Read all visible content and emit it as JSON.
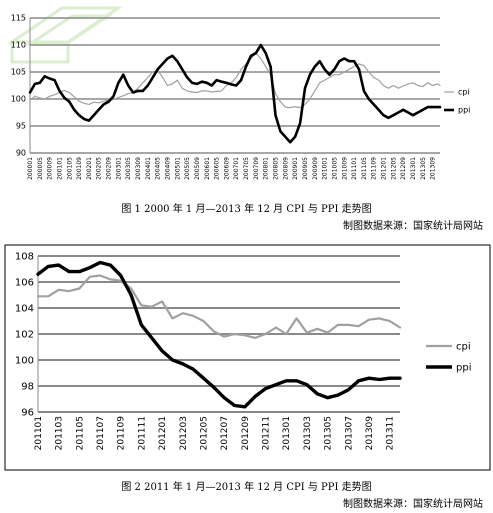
{
  "charts": [
    {
      "type": "line",
      "caption": "图 1  2000 年 1 月—2013 年 12 月 CPI 与 PPI 走势图",
      "source": "制图数据来源：国家统计局网站",
      "ylim": [
        90,
        115
      ],
      "yticks": [
        "90",
        "95",
        "100",
        "105",
        "110",
        "115"
      ],
      "xticks": [
        "200001",
        "200005",
        "200009",
        "200101",
        "200105",
        "200109",
        "200201",
        "200205",
        "200209",
        "200301",
        "200305",
        "200309",
        "200401",
        "200405",
        "200409",
        "200501",
        "200505",
        "200509",
        "200601",
        "200605",
        "200609",
        "200701",
        "200705",
        "200709",
        "200801",
        "200805",
        "200809",
        "200901",
        "200905",
        "200909",
        "201001",
        "201005",
        "201009",
        "201101",
        "201105",
        "201109",
        "201201",
        "201205",
        "201209",
        "201301",
        "201305",
        "201309"
      ],
      "legend": [
        "cpi",
        "ppi"
      ],
      "series_colors": [
        "#a0a0a0",
        "#000000"
      ],
      "series": [
        {
          "name": "cpi",
          "x": [
            0,
            2,
            4,
            6,
            8,
            10,
            12,
            14,
            16,
            18,
            20,
            22,
            24,
            26,
            28,
            30,
            32,
            34,
            36,
            38,
            40,
            42,
            44,
            46,
            48,
            50,
            52,
            54,
            56,
            58,
            60,
            62,
            64,
            66,
            68,
            70,
            72,
            74,
            76,
            78,
            80,
            82,
            84,
            86,
            88,
            90,
            92,
            94,
            96,
            98,
            100,
            102,
            104,
            106,
            108,
            110,
            112,
            114,
            116,
            118,
            120,
            122,
            124,
            126,
            128,
            130,
            132,
            134,
            136,
            138,
            140,
            142,
            144,
            146,
            148,
            150,
            152,
            154,
            156,
            158,
            160,
            162,
            164,
            166,
            167
          ],
          "y": [
            99.8,
            100.5,
            100.2,
            100.0,
            100.5,
            100.8,
            101.2,
            101.6,
            101.2,
            100.4,
            99.6,
            99.2,
            99.0,
            99.4,
            99.3,
            99.6,
            99.8,
            99.9,
            100.3,
            100.6,
            101.0,
            101.2,
            102.0,
            103.0,
            104.0,
            105.0,
            105.3,
            104.0,
            102.5,
            102.8,
            103.5,
            102.0,
            101.5,
            101.3,
            101.2,
            101.5,
            101.5,
            101.3,
            101.4,
            101.5,
            102.5,
            103.0,
            104.0,
            105.5,
            106.5,
            107.5,
            108.5,
            107.5,
            106.0,
            104.5,
            101.0,
            99.5,
            98.5,
            98.4,
            98.6,
            98.4,
            99.0,
            100.0,
            101.5,
            103.0,
            103.5,
            104.0,
            104.5,
            104.5,
            105.0,
            105.5,
            106.0,
            106.5,
            106.2,
            105.0,
            104.0,
            103.5,
            102.5,
            102.0,
            102.5,
            102.0,
            102.4,
            102.8,
            103.0,
            102.5,
            102.3,
            103.0,
            102.5,
            102.8,
            102.5
          ]
        },
        {
          "name": "ppi",
          "x": [
            0,
            2,
            4,
            6,
            8,
            10,
            12,
            14,
            16,
            18,
            20,
            22,
            24,
            26,
            28,
            30,
            32,
            34,
            36,
            38,
            40,
            42,
            44,
            46,
            48,
            50,
            52,
            54,
            56,
            58,
            60,
            62,
            64,
            66,
            68,
            70,
            72,
            74,
            76,
            78,
            80,
            82,
            84,
            86,
            88,
            90,
            92,
            94,
            96,
            98,
            100,
            102,
            104,
            106,
            108,
            110,
            112,
            114,
            116,
            118,
            120,
            122,
            124,
            126,
            128,
            130,
            132,
            134,
            136,
            138,
            140,
            142,
            144,
            146,
            148,
            150,
            152,
            154,
            156,
            158,
            160,
            162,
            164,
            166,
            167
          ],
          "y": [
            101.2,
            102.8,
            103.0,
            104.2,
            103.8,
            103.5,
            101.5,
            100.2,
            99.5,
            98.0,
            97.0,
            96.3,
            96.0,
            97.0,
            98.0,
            99.0,
            99.5,
            100.5,
            103.0,
            104.5,
            102.5,
            101.2,
            101.5,
            101.5,
            102.5,
            104.0,
            105.5,
            106.5,
            107.5,
            108.0,
            107.0,
            105.5,
            104.0,
            103.0,
            102.8,
            103.2,
            103.0,
            102.5,
            103.5,
            103.2,
            103.0,
            102.7,
            102.5,
            103.5,
            106.0,
            108.0,
            108.5,
            110.0,
            108.5,
            106.0,
            97.0,
            94.0,
            93.0,
            92.0,
            93.0,
            95.5,
            102.0,
            104.5,
            106.0,
            107.0,
            105.5,
            104.5,
            105.5,
            107.0,
            107.5,
            107.0,
            107.0,
            105.5,
            101.5,
            100.0,
            99.0,
            98.0,
            97.0,
            96.5,
            97.0,
            97.5,
            98.0,
            97.5,
            97.0,
            97.5,
            98.0,
            98.5,
            98.5,
            98.5,
            98.5
          ]
        }
      ]
    },
    {
      "type": "line",
      "caption": "图 2  2011 年 1 月—2013 年 12 月 CPI 与 PPI 走势图",
      "source": "制图数据来源：国家统计局网站",
      "ylim": [
        96,
        108
      ],
      "yticks": [
        "96",
        "98",
        "100",
        "102",
        "104",
        "106",
        "108"
      ],
      "xticks": [
        "201101",
        "201103",
        "201105",
        "201107",
        "201109",
        "201111",
        "201201",
        "201203",
        "201205",
        "201207",
        "201209",
        "201211",
        "201301",
        "201303",
        "201305",
        "201307",
        "201309",
        "201311"
      ],
      "legend": [
        "cpi",
        "ppi"
      ],
      "series_colors": [
        "#a0a0a0",
        "#000000"
      ],
      "series": [
        {
          "name": "cpi",
          "x": [
            0,
            1,
            2,
            3,
            4,
            5,
            6,
            7,
            8,
            9,
            10,
            11,
            12,
            13,
            14,
            15,
            16,
            17,
            18,
            19,
            20,
            21,
            22,
            23,
            24,
            25,
            26,
            27,
            28,
            29,
            30,
            31,
            32,
            33,
            34,
            35
          ],
          "y": [
            104.9,
            104.9,
            105.4,
            105.3,
            105.5,
            106.4,
            106.5,
            106.2,
            106.1,
            105.5,
            104.2,
            104.1,
            104.5,
            103.2,
            103.6,
            103.4,
            103.0,
            102.2,
            101.8,
            102.0,
            101.9,
            101.7,
            102.0,
            102.5,
            102.0,
            103.2,
            102.1,
            102.4,
            102.1,
            102.7,
            102.7,
            102.6,
            103.1,
            103.2,
            103.0,
            102.5
          ]
        },
        {
          "name": "ppi",
          "x": [
            0,
            1,
            2,
            3,
            4,
            5,
            6,
            7,
            8,
            9,
            10,
            11,
            12,
            13,
            14,
            15,
            16,
            17,
            18,
            19,
            20,
            21,
            22,
            23,
            24,
            25,
            26,
            27,
            28,
            29,
            30,
            31,
            32,
            33,
            34,
            35
          ],
          "y": [
            106.6,
            107.2,
            107.3,
            106.8,
            106.8,
            107.1,
            107.5,
            107.3,
            106.5,
            105.0,
            102.7,
            101.7,
            100.7,
            100.0,
            99.7,
            99.3,
            98.6,
            97.9,
            97.1,
            96.5,
            96.4,
            97.2,
            97.8,
            98.1,
            98.4,
            98.4,
            98.1,
            97.4,
            97.1,
            97.3,
            97.7,
            98.4,
            98.6,
            98.5,
            98.6,
            98.6
          ]
        }
      ]
    }
  ]
}
